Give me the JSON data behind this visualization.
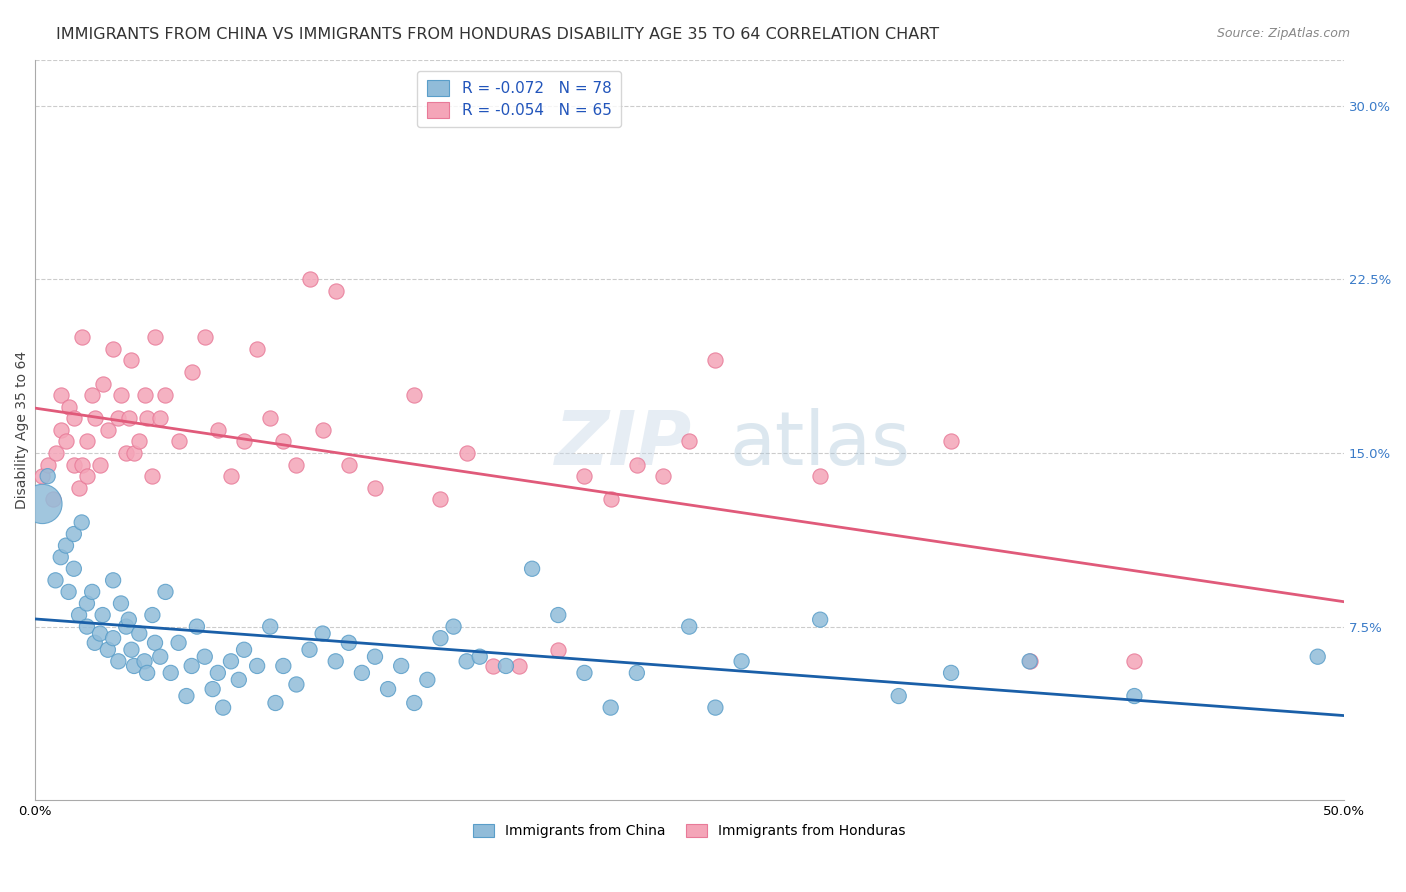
{
  "title": "IMMIGRANTS FROM CHINA VS IMMIGRANTS FROM HONDURAS DISABILITY AGE 35 TO 64 CORRELATION CHART",
  "source": "Source: ZipAtlas.com",
  "ylabel": "Disability Age 35 to 64",
  "xlim": [
    0.0,
    0.5
  ],
  "ylim": [
    0.0,
    0.32
  ],
  "xtick_positions": [
    0.0,
    0.1,
    0.2,
    0.3,
    0.4,
    0.5
  ],
  "xticklabels": [
    "0.0%",
    "",
    "",
    "",
    "",
    "50.0%"
  ],
  "yticks_right": [
    0.075,
    0.15,
    0.225,
    0.3
  ],
  "yticklabels_right": [
    "7.5%",
    "15.0%",
    "22.5%",
    "30.0%"
  ],
  "legend_label_china": "R = -0.072   N = 78",
  "legend_label_honduras": "R = -0.054   N = 65",
  "china_color": "#91bcd9",
  "honduras_color": "#f4a5b8",
  "china_edge": "#5a9ec9",
  "honduras_edge": "#e87a98",
  "trend_china_color": "#1a5fa8",
  "trend_honduras_color": "#e05a7a",
  "legend_text_color": "#2255bb",
  "background_color": "#ffffff",
  "china_R": -0.072,
  "china_N": 78,
  "honduras_R": -0.054,
  "honduras_N": 65,
  "china_x": [
    0.003,
    0.005,
    0.008,
    0.01,
    0.012,
    0.013,
    0.015,
    0.015,
    0.017,
    0.018,
    0.02,
    0.02,
    0.022,
    0.023,
    0.025,
    0.026,
    0.028,
    0.03,
    0.03,
    0.032,
    0.033,
    0.035,
    0.036,
    0.037,
    0.038,
    0.04,
    0.042,
    0.043,
    0.045,
    0.046,
    0.048,
    0.05,
    0.052,
    0.055,
    0.058,
    0.06,
    0.062,
    0.065,
    0.068,
    0.07,
    0.072,
    0.075,
    0.078,
    0.08,
    0.085,
    0.09,
    0.092,
    0.095,
    0.1,
    0.105,
    0.11,
    0.115,
    0.12,
    0.125,
    0.13,
    0.135,
    0.14,
    0.145,
    0.15,
    0.155,
    0.16,
    0.165,
    0.17,
    0.18,
    0.19,
    0.2,
    0.21,
    0.22,
    0.23,
    0.25,
    0.26,
    0.27,
    0.3,
    0.33,
    0.35,
    0.38,
    0.42,
    0.49
  ],
  "china_y": [
    0.128,
    0.14,
    0.095,
    0.105,
    0.11,
    0.09,
    0.115,
    0.1,
    0.08,
    0.12,
    0.085,
    0.075,
    0.09,
    0.068,
    0.072,
    0.08,
    0.065,
    0.095,
    0.07,
    0.06,
    0.085,
    0.075,
    0.078,
    0.065,
    0.058,
    0.072,
    0.06,
    0.055,
    0.08,
    0.068,
    0.062,
    0.09,
    0.055,
    0.068,
    0.045,
    0.058,
    0.075,
    0.062,
    0.048,
    0.055,
    0.04,
    0.06,
    0.052,
    0.065,
    0.058,
    0.075,
    0.042,
    0.058,
    0.05,
    0.065,
    0.072,
    0.06,
    0.068,
    0.055,
    0.062,
    0.048,
    0.058,
    0.042,
    0.052,
    0.07,
    0.075,
    0.06,
    0.062,
    0.058,
    0.1,
    0.08,
    0.055,
    0.04,
    0.055,
    0.075,
    0.04,
    0.06,
    0.078,
    0.045,
    0.055,
    0.06,
    0.045,
    0.062
  ],
  "china_sizes": [
    800,
    120,
    120,
    120,
    120,
    120,
    120,
    120,
    120,
    120,
    120,
    120,
    120,
    120,
    120,
    120,
    120,
    120,
    120,
    120,
    120,
    120,
    120,
    120,
    120,
    120,
    120,
    120,
    120,
    120,
    120,
    120,
    120,
    120,
    120,
    120,
    120,
    120,
    120,
    120,
    120,
    120,
    120,
    120,
    120,
    120,
    120,
    120,
    120,
    120,
    120,
    120,
    120,
    120,
    120,
    120,
    120,
    120,
    120,
    120,
    120,
    120,
    120,
    120,
    120,
    120,
    120,
    120,
    120,
    120,
    120,
    120,
    120,
    120,
    120,
    120,
    120,
    120
  ],
  "honduras_x": [
    0.003,
    0.005,
    0.007,
    0.008,
    0.01,
    0.01,
    0.012,
    0.013,
    0.015,
    0.015,
    0.017,
    0.018,
    0.018,
    0.02,
    0.02,
    0.022,
    0.023,
    0.025,
    0.026,
    0.028,
    0.03,
    0.032,
    0.033,
    0.035,
    0.036,
    0.037,
    0.038,
    0.04,
    0.042,
    0.043,
    0.045,
    0.046,
    0.048,
    0.05,
    0.055,
    0.06,
    0.065,
    0.07,
    0.075,
    0.08,
    0.085,
    0.09,
    0.095,
    0.1,
    0.105,
    0.11,
    0.115,
    0.12,
    0.13,
    0.145,
    0.155,
    0.165,
    0.175,
    0.185,
    0.2,
    0.21,
    0.22,
    0.23,
    0.24,
    0.25,
    0.26,
    0.3,
    0.35,
    0.38,
    0.42
  ],
  "honduras_y": [
    0.14,
    0.145,
    0.13,
    0.15,
    0.16,
    0.175,
    0.155,
    0.17,
    0.145,
    0.165,
    0.135,
    0.145,
    0.2,
    0.14,
    0.155,
    0.175,
    0.165,
    0.145,
    0.18,
    0.16,
    0.195,
    0.165,
    0.175,
    0.15,
    0.165,
    0.19,
    0.15,
    0.155,
    0.175,
    0.165,
    0.14,
    0.2,
    0.165,
    0.175,
    0.155,
    0.185,
    0.2,
    0.16,
    0.14,
    0.155,
    0.195,
    0.165,
    0.155,
    0.145,
    0.225,
    0.16,
    0.22,
    0.145,
    0.135,
    0.175,
    0.13,
    0.15,
    0.058,
    0.058,
    0.065,
    0.14,
    0.13,
    0.145,
    0.14,
    0.155,
    0.19,
    0.14,
    0.155,
    0.06,
    0.06
  ],
  "title_fontsize": 11.5,
  "axis_label_fontsize": 10,
  "tick_fontsize": 9.5,
  "legend_fontsize": 11,
  "bottom_legend_label_china": "Immigrants from China",
  "bottom_legend_label_honduras": "Immigrants from Honduras"
}
